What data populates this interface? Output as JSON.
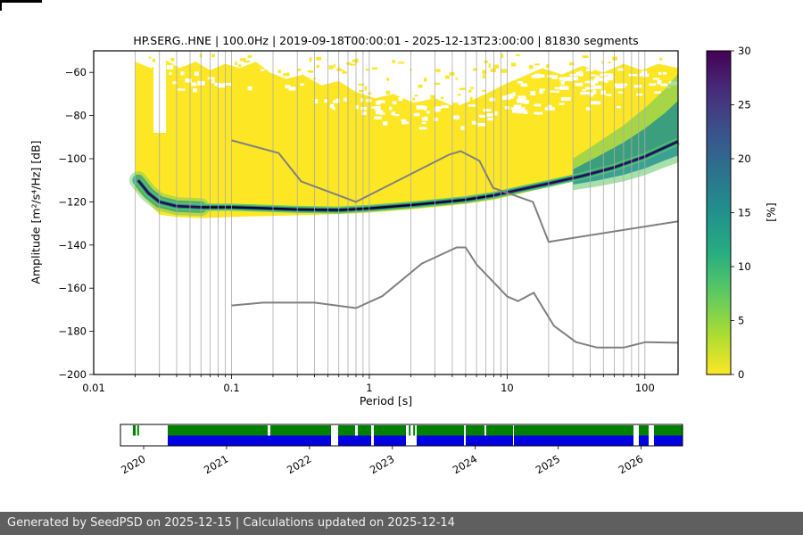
{
  "header": {
    "title": "HP.SERG..HNE | 100.0Hz | 2019-09-18T00:00:01 - 2025-12-13T23:00:00 | 81830 segments"
  },
  "footer": {
    "text": "Generated by SeedPSD on 2025-12-15 | Calculations updated on 2025-12-14",
    "bg": "#5f5f5f"
  },
  "chart_data": {
    "type": "heatmap",
    "title": "HP.SERG..HNE | 100.0Hz | 2019-09-18T00:00:01 - 2025-12-13T23:00:00 | 81830 segments",
    "xlabel": "Period [s]",
    "ylabel": "Amplitude [m²/s⁴/Hz] [dB]",
    "xscale": "log",
    "xlim": [
      0.01,
      174
    ],
    "ylim": [
      -200,
      -50
    ],
    "xticks": {
      "values": [
        0.01,
        0.1,
        1,
        10,
        100
      ],
      "labels": [
        "0.01",
        "0.1",
        "1",
        "10",
        "100"
      ]
    },
    "yticks": [
      -60,
      -80,
      -100,
      -120,
      -140,
      -160,
      -180,
      -200
    ],
    "grid": "vertical log major+minor",
    "colors": {
      "low": "#fde725",
      "mid_green": "#5ec962",
      "mid_teal": "#21918c",
      "dark": "#2a0a50",
      "darkest": "#0b0420",
      "grid": "#ababab",
      "noise_model": "#808080"
    },
    "colorbar": {
      "label": "[%]",
      "min": 0,
      "max": 30,
      "ticks": [
        0,
        5,
        10,
        15,
        20,
        25,
        30
      ],
      "colormap": "viridis reversed (yellow = 0%, dark purple = 30%)",
      "gradient_top_to_bottom": [
        "#440154",
        "#472d7b",
        "#3b528b",
        "#2c728e",
        "#21918c",
        "#27ad81",
        "#5ec962",
        "#aadc32",
        "#fde725"
      ]
    },
    "histogram": {
      "description": "PPSD probability histogram: broad yellow low-probability cloud with a narrow dark high-probability mode band near -120 dB that rises and spreads teal/green toward long periods",
      "top_edge": [
        [
          0.02,
          -55
        ],
        [
          0.026,
          -58
        ],
        [
          0.033,
          -54
        ],
        [
          0.042,
          -58
        ],
        [
          0.055,
          -55
        ],
        [
          0.07,
          -59
        ],
        [
          0.09,
          -56
        ],
        [
          0.115,
          -58
        ],
        [
          0.15,
          -55
        ],
        [
          0.19,
          -60
        ],
        [
          0.25,
          -63
        ],
        [
          0.33,
          -61
        ],
        [
          0.45,
          -66
        ],
        [
          0.6,
          -64
        ],
        [
          0.8,
          -69
        ],
        [
          1.1,
          -72
        ],
        [
          1.5,
          -70
        ],
        [
          2.1,
          -74
        ],
        [
          3.0,
          -72
        ],
        [
          4.2,
          -76
        ],
        [
          5.5,
          -73
        ],
        [
          7.5,
          -69
        ],
        [
          10,
          -65
        ],
        [
          13,
          -62
        ],
        [
          18,
          -58
        ],
        [
          25,
          -61
        ],
        [
          35,
          -57
        ],
        [
          50,
          -60
        ],
        [
          70,
          -56
        ],
        [
          95,
          -59
        ],
        [
          125,
          -56
        ],
        [
          174,
          -58
        ]
      ],
      "bottom_edge": [
        [
          0.02,
          -114
        ],
        [
          0.025,
          -120
        ],
        [
          0.03,
          -126
        ],
        [
          0.04,
          -127
        ],
        [
          0.06,
          -127.5
        ],
        [
          0.1,
          -127
        ],
        [
          0.2,
          -126.5
        ],
        [
          0.4,
          -126
        ],
        [
          0.7,
          -125.5
        ],
        [
          1.0,
          -125
        ],
        [
          2.0,
          -123.5
        ],
        [
          3.5,
          -122
        ],
        [
          5.0,
          -121
        ],
        [
          8.0,
          -119
        ],
        [
          12.0,
          -116.5
        ],
        [
          20.0,
          -113
        ],
        [
          35.0,
          -109.5
        ],
        [
          60.0,
          -105.5
        ],
        [
          100.0,
          -100
        ],
        [
          140.0,
          -96
        ],
        [
          174.0,
          -93.5
        ]
      ],
      "mode_band": [
        [
          0.021,
          -110
        ],
        [
          0.025,
          -116
        ],
        [
          0.03,
          -120
        ],
        [
          0.04,
          -122
        ],
        [
          0.06,
          -122.5
        ],
        [
          0.1,
          -122.5
        ],
        [
          0.15,
          -122.8
        ],
        [
          0.3,
          -123.5
        ],
        [
          0.6,
          -123.8
        ],
        [
          1.0,
          -123.0
        ],
        [
          2.0,
          -121.5
        ],
        [
          3.5,
          -120.0
        ],
        [
          5.0,
          -119.0
        ],
        [
          8.0,
          -117.0
        ],
        [
          12.0,
          -114.5
        ],
        [
          20.0,
          -111.5
        ],
        [
          35.0,
          -108.0
        ],
        [
          60.0,
          -104.0
        ],
        [
          100.0,
          -99.0
        ],
        [
          174.0,
          -92.0
        ]
      ]
    },
    "noise_models": {
      "color": "#808080",
      "high_noise_model": [
        [
          0.1,
          -91.5
        ],
        [
          0.22,
          -97.4
        ],
        [
          0.32,
          -110.5
        ],
        [
          0.8,
          -120.0
        ],
        [
          3.8,
          -98.1
        ],
        [
          4.6,
          -96.5
        ],
        [
          6.3,
          -101.0
        ],
        [
          7.9,
          -113.5
        ],
        [
          15.4,
          -120.0
        ],
        [
          20.0,
          -138.5
        ],
        [
          174.0,
          -129.0
        ]
      ],
      "low_noise_model": [
        [
          0.1,
          -168.0
        ],
        [
          0.17,
          -166.7
        ],
        [
          0.4,
          -166.7
        ],
        [
          0.8,
          -169.2
        ],
        [
          1.24,
          -163.7
        ],
        [
          2.4,
          -148.6
        ],
        [
          4.3,
          -141.1
        ],
        [
          5.0,
          -141.1
        ],
        [
          6.0,
          -149.0
        ],
        [
          10.0,
          -163.8
        ],
        [
          12.0,
          -166.0
        ],
        [
          15.6,
          -162.1
        ],
        [
          21.9,
          -177.5
        ],
        [
          31.6,
          -185.0
        ],
        [
          45.0,
          -187.5
        ],
        [
          70.0,
          -187.5
        ],
        [
          101.0,
          -185.0
        ],
        [
          174.0,
          -185.3
        ]
      ]
    }
  },
  "timeline": {
    "years": [
      "2020",
      "2021",
      "2022",
      "2023",
      "2024",
      "2025",
      "2026"
    ],
    "year_fractions": [
      0.0413,
      0.1888,
      0.3363,
      0.4838,
      0.6313,
      0.7788,
      0.9263
    ],
    "green_color": "#008000",
    "blue_color": "#0000e0",
    "green_segments": [
      [
        0.022,
        0.027
      ],
      [
        0.03,
        0.033
      ],
      [
        0.0841,
        0.2619
      ],
      [
        0.2667,
        0.3746
      ],
      [
        0.3873,
        0.4175
      ],
      [
        0.4222,
        0.446
      ],
      [
        0.4508,
        0.5079
      ],
      [
        0.513,
        0.516
      ],
      [
        0.521,
        0.524
      ],
      [
        0.527,
        0.6111
      ],
      [
        0.6143,
        0.6476
      ],
      [
        0.6508,
        0.6984
      ],
      [
        0.7,
        0.9127
      ],
      [
        0.9222,
        0.9397
      ],
      [
        0.9492,
        1.0
      ]
    ],
    "blue_segments": [
      [
        0.0841,
        0.3746
      ],
      [
        0.3873,
        0.446
      ],
      [
        0.4508,
        0.5079
      ],
      [
        0.527,
        0.6111
      ],
      [
        0.6143,
        0.6984
      ],
      [
        0.7,
        0.9127
      ],
      [
        0.9222,
        0.9397
      ],
      [
        0.9492,
        1.0
      ]
    ]
  }
}
